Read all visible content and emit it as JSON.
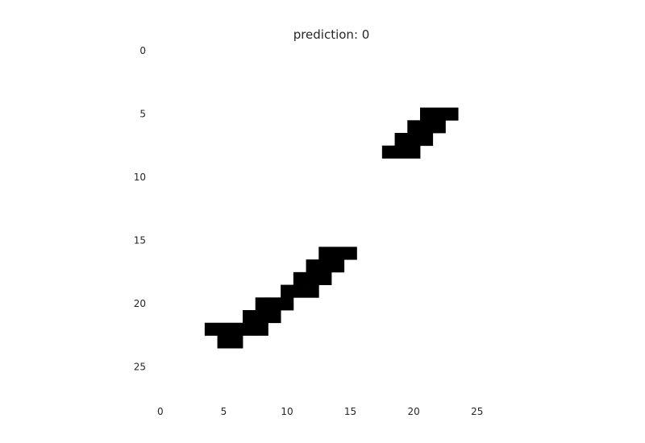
{
  "chart_data": {
    "type": "heatmap",
    "title": "prediction: 0",
    "xlabel": "",
    "ylabel": "",
    "colormap": "binary",
    "grid": false,
    "background_color": "#ffffff",
    "pixel_color": "#000000",
    "image_size": [
      28,
      28
    ],
    "x_ticks": [
      "0",
      "5",
      "10",
      "15",
      "20",
      "25"
    ],
    "y_ticks": [
      "0",
      "5",
      "10",
      "15",
      "20",
      "25"
    ],
    "xlim": [
      -0.5,
      27.5
    ],
    "ylim": [
      27.5,
      -0.5
    ],
    "ink_pixels": [
      [
        4,
        22
      ],
      [
        5,
        22
      ],
      [
        5,
        23
      ],
      [
        6,
        22
      ],
      [
        6,
        23
      ],
      [
        7,
        21
      ],
      [
        7,
        22
      ],
      [
        8,
        20
      ],
      [
        8,
        21
      ],
      [
        8,
        22
      ],
      [
        9,
        20
      ],
      [
        9,
        21
      ],
      [
        10,
        19
      ],
      [
        10,
        20
      ],
      [
        11,
        18
      ],
      [
        11,
        19
      ],
      [
        12,
        17
      ],
      [
        12,
        18
      ],
      [
        12,
        19
      ],
      [
        13,
        16
      ],
      [
        13,
        17
      ],
      [
        13,
        18
      ],
      [
        14,
        16
      ],
      [
        14,
        17
      ],
      [
        15,
        16
      ],
      [
        18,
        8
      ],
      [
        19,
        7
      ],
      [
        19,
        8
      ],
      [
        20,
        6
      ],
      [
        20,
        7
      ],
      [
        20,
        8
      ],
      [
        21,
        5
      ],
      [
        21,
        6
      ],
      [
        21,
        7
      ],
      [
        22,
        5
      ],
      [
        22,
        6
      ],
      [
        23,
        5
      ]
    ]
  }
}
